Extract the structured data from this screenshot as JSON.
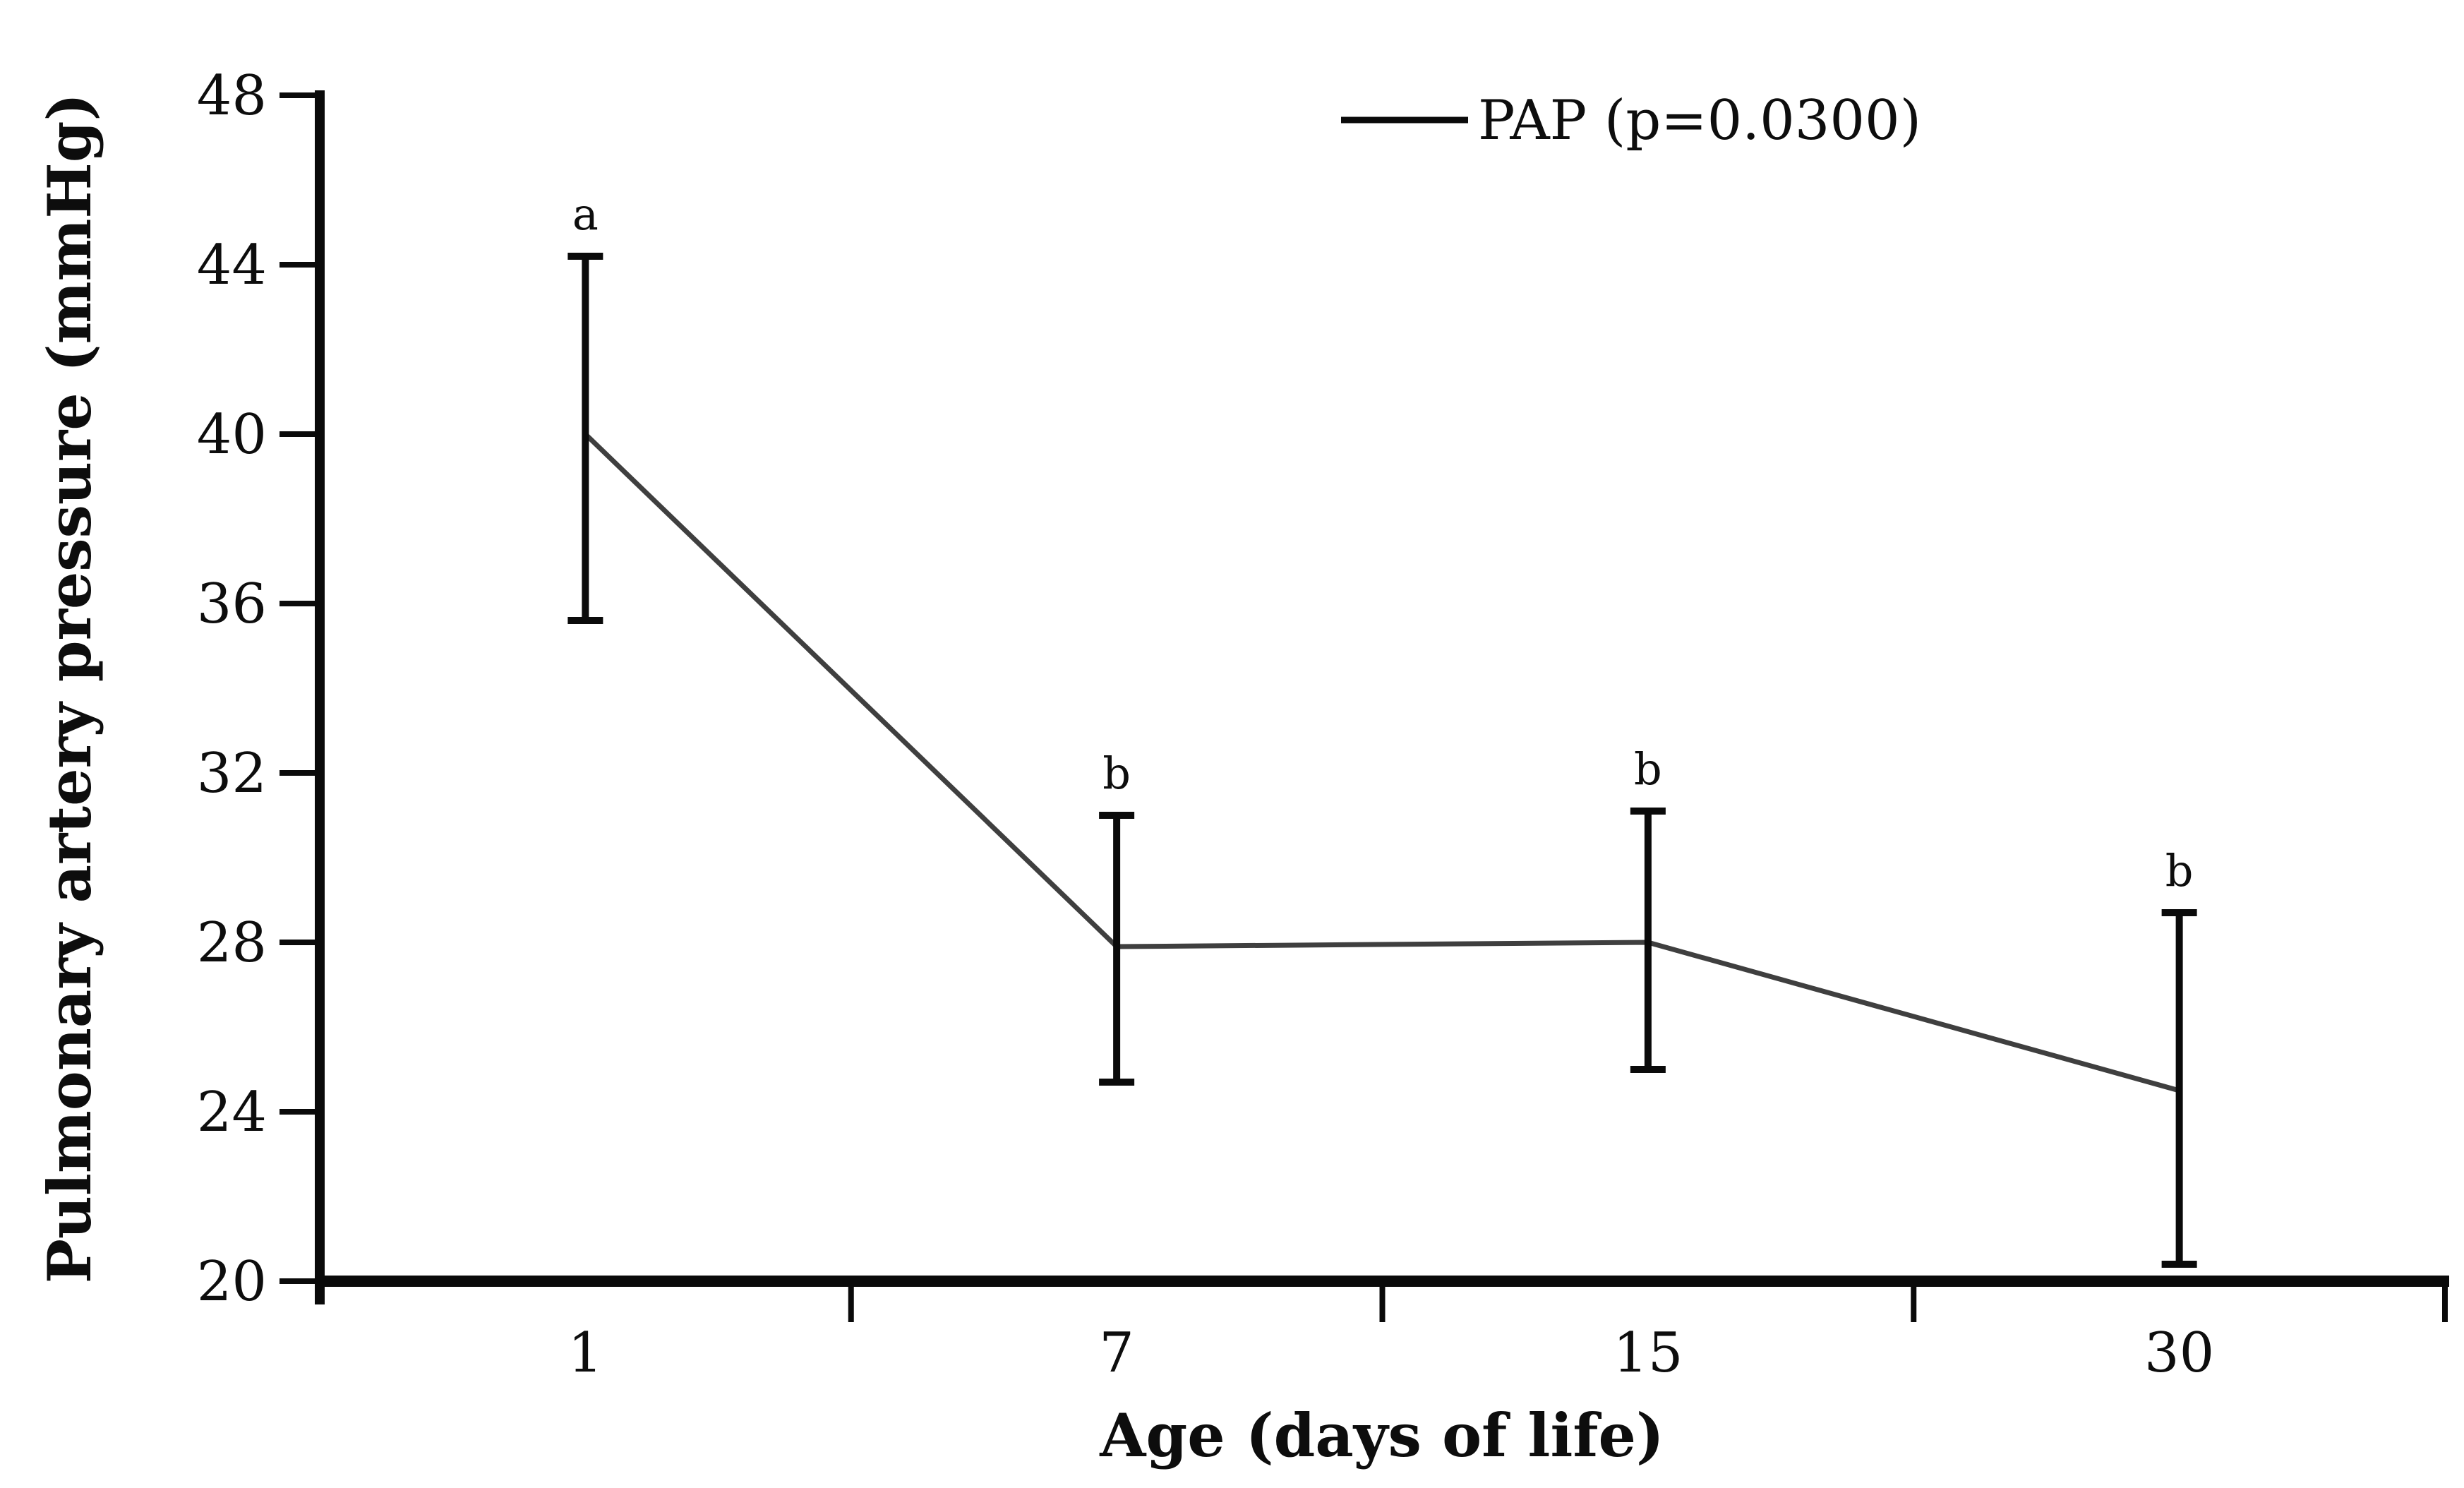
{
  "figure": {
    "background_color": "#ffffff",
    "legend": {
      "label": "PAP (p=0.0300)",
      "marker": "line"
    }
  },
  "chart_data": {
    "type": "line",
    "title": "",
    "xlabel": "Age (days of life)",
    "ylabel": "Pulmonary artery pressure (mmHg)",
    "categories": [
      "1",
      "7",
      "15",
      "30"
    ],
    "series": [
      {
        "name": "PAP (p=0.0300)",
        "values": [
          40.0,
          27.9,
          28.0,
          24.5
        ],
        "error_upper": [
          44.2,
          31.0,
          31.1,
          28.7
        ],
        "error_lower": [
          35.6,
          24.7,
          25.0,
          20.4
        ],
        "point_labels": [
          "a",
          "b",
          "b",
          "b"
        ]
      }
    ],
    "ylim": [
      20,
      48
    ],
    "ytick_step": 4,
    "yticks": [
      20,
      24,
      28,
      32,
      36,
      40,
      44,
      48
    ],
    "grid": false,
    "legend_position": "top-right-inside",
    "error_bars": true,
    "markers": false,
    "colors": {
      "line": "#3f3f3f",
      "error_bar": "#0a0a0a",
      "axis": "#0a0a0a",
      "text": "#0d0d0d",
      "background": "#ffffff"
    }
  }
}
